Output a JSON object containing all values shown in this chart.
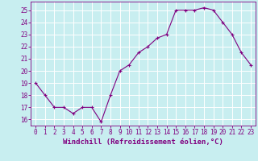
{
  "x": [
    0,
    1,
    2,
    3,
    4,
    5,
    6,
    7,
    8,
    9,
    10,
    11,
    12,
    13,
    14,
    15,
    16,
    17,
    18,
    19,
    20,
    21,
    22,
    23
  ],
  "y": [
    19.0,
    18.0,
    17.0,
    17.0,
    16.5,
    17.0,
    17.0,
    15.8,
    18.0,
    20.0,
    20.5,
    21.5,
    22.0,
    22.7,
    23.0,
    25.0,
    25.0,
    25.0,
    25.2,
    25.0,
    24.0,
    23.0,
    21.5,
    20.5
  ],
  "line_color": "#800080",
  "marker": "+",
  "bg_color": "#c8eef0",
  "grid_color": "#ffffff",
  "xlabel": "Windchill (Refroidissement éolien,°C)",
  "ylim": [
    15.5,
    25.7
  ],
  "xlim": [
    -0.5,
    23.5
  ],
  "yticks": [
    16,
    17,
    18,
    19,
    20,
    21,
    22,
    23,
    24,
    25
  ],
  "xticks": [
    0,
    1,
    2,
    3,
    4,
    5,
    6,
    7,
    8,
    9,
    10,
    11,
    12,
    13,
    14,
    15,
    16,
    17,
    18,
    19,
    20,
    21,
    22,
    23
  ],
  "font_color": "#800080",
  "tick_fontsize": 5.5,
  "label_fontsize": 6.5
}
